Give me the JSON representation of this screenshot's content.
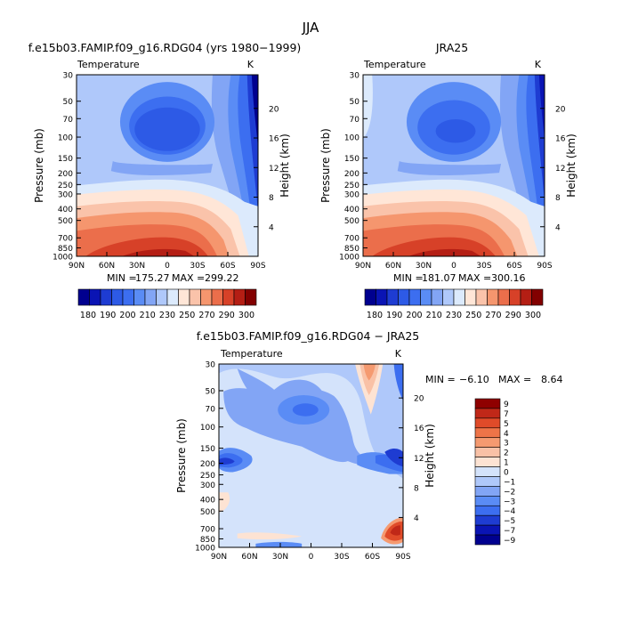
{
  "page": {
    "title": "JJA"
  },
  "colors": {
    "abs_scale": [
      "#00008f",
      "#0a14b4",
      "#1e3cd2",
      "#2d5ae6",
      "#3c6ef0",
      "#5a8cf5",
      "#82a5f5",
      "#afc8fa",
      "#dceafc",
      "#ffe6d7",
      "#fac3aa",
      "#f5966e",
      "#eb6e4b",
      "#d74128",
      "#b41e14",
      "#820000"
    ],
    "diff_scale": [
      "#00008f",
      "#0a14b4",
      "#1e3cd2",
      "#3c6ef0",
      "#5a8cf5",
      "#82a5f5",
      "#afc8fa",
      "#d4e3fb",
      "#fde3d3",
      "#f9c1a6",
      "#f59a70",
      "#ee7448",
      "#e04b29",
      "#c02818",
      "#8f0000"
    ]
  },
  "chart_data": [
    {
      "type": "heatmap",
      "title": "f.e15b03.FAMIP.f09_g16.RDG04 (yrs 1980−1999)",
      "subtitle_left": "Temperature",
      "subtitle_right": "K",
      "xlabel": "",
      "ylabel": "Pressure (mb)",
      "ylabel_right": "Height (km)",
      "x_ticks": [
        "90N",
        "60N",
        "30N",
        "0",
        "30S",
        "60S",
        "90S"
      ],
      "y_ticks": [
        "30",
        "50",
        "70",
        "100",
        "150",
        "200",
        "250",
        "300",
        "400",
        "500",
        "700",
        "850",
        "1000"
      ],
      "y_ticks_right": [
        "20",
        "16",
        "12",
        "8",
        "4"
      ],
      "stats": {
        "min_label": "MIN =",
        "min": "175.27",
        "max_label": "MAX =",
        "max": "299.22"
      },
      "colorbar_labels": [
        "180",
        "190",
        "200",
        "210",
        "230",
        "250",
        "270",
        "290",
        "300"
      ],
      "colorbar_levels": 16
    },
    {
      "type": "heatmap",
      "title": "JRA25",
      "subtitle_left": "Temperature",
      "subtitle_right": "K",
      "xlabel": "",
      "ylabel": "Pressure (mb)",
      "ylabel_right": "Height (km)",
      "x_ticks": [
        "90N",
        "60N",
        "30N",
        "0",
        "30S",
        "60S",
        "90S"
      ],
      "y_ticks": [
        "30",
        "50",
        "70",
        "100",
        "150",
        "200",
        "250",
        "300",
        "400",
        "500",
        "700",
        "850",
        "1000"
      ],
      "y_ticks_right": [
        "20",
        "16",
        "12",
        "8",
        "4"
      ],
      "stats": {
        "min_label": "MIN =",
        "min": "181.07",
        "max_label": "MAX =",
        "max": "300.16"
      },
      "colorbar_labels": [
        "180",
        "190",
        "200",
        "210",
        "230",
        "250",
        "270",
        "290",
        "300"
      ],
      "colorbar_levels": 16
    },
    {
      "type": "heatmap",
      "title": "f.e15b03.FAMIP.f09_g16.RDG04 − JRA25",
      "subtitle_left": "Temperature",
      "subtitle_right": "K",
      "xlabel": "",
      "ylabel": "Pressure (mb)",
      "ylabel_right": "Height (km)",
      "x_ticks": [
        "90N",
        "60N",
        "30N",
        "0",
        "30S",
        "60S",
        "90S"
      ],
      "y_ticks": [
        "30",
        "50",
        "70",
        "100",
        "150",
        "200",
        "250",
        "300",
        "400",
        "500",
        "700",
        "850",
        "1000"
      ],
      "y_ticks_right": [
        "20",
        "16",
        "12",
        "8",
        "4"
      ],
      "stats": {
        "min_label": "MIN =",
        "min": "−6.10",
        "max_label": "MAX =",
        "max": "8.64"
      },
      "colorbar_labels": [
        "9",
        "7",
        "5",
        "4",
        "3",
        "2",
        "1",
        "0",
        "−1",
        "−2",
        "−3",
        "−4",
        "−5",
        "−7",
        "−9"
      ],
      "colorbar_levels": 15
    }
  ]
}
